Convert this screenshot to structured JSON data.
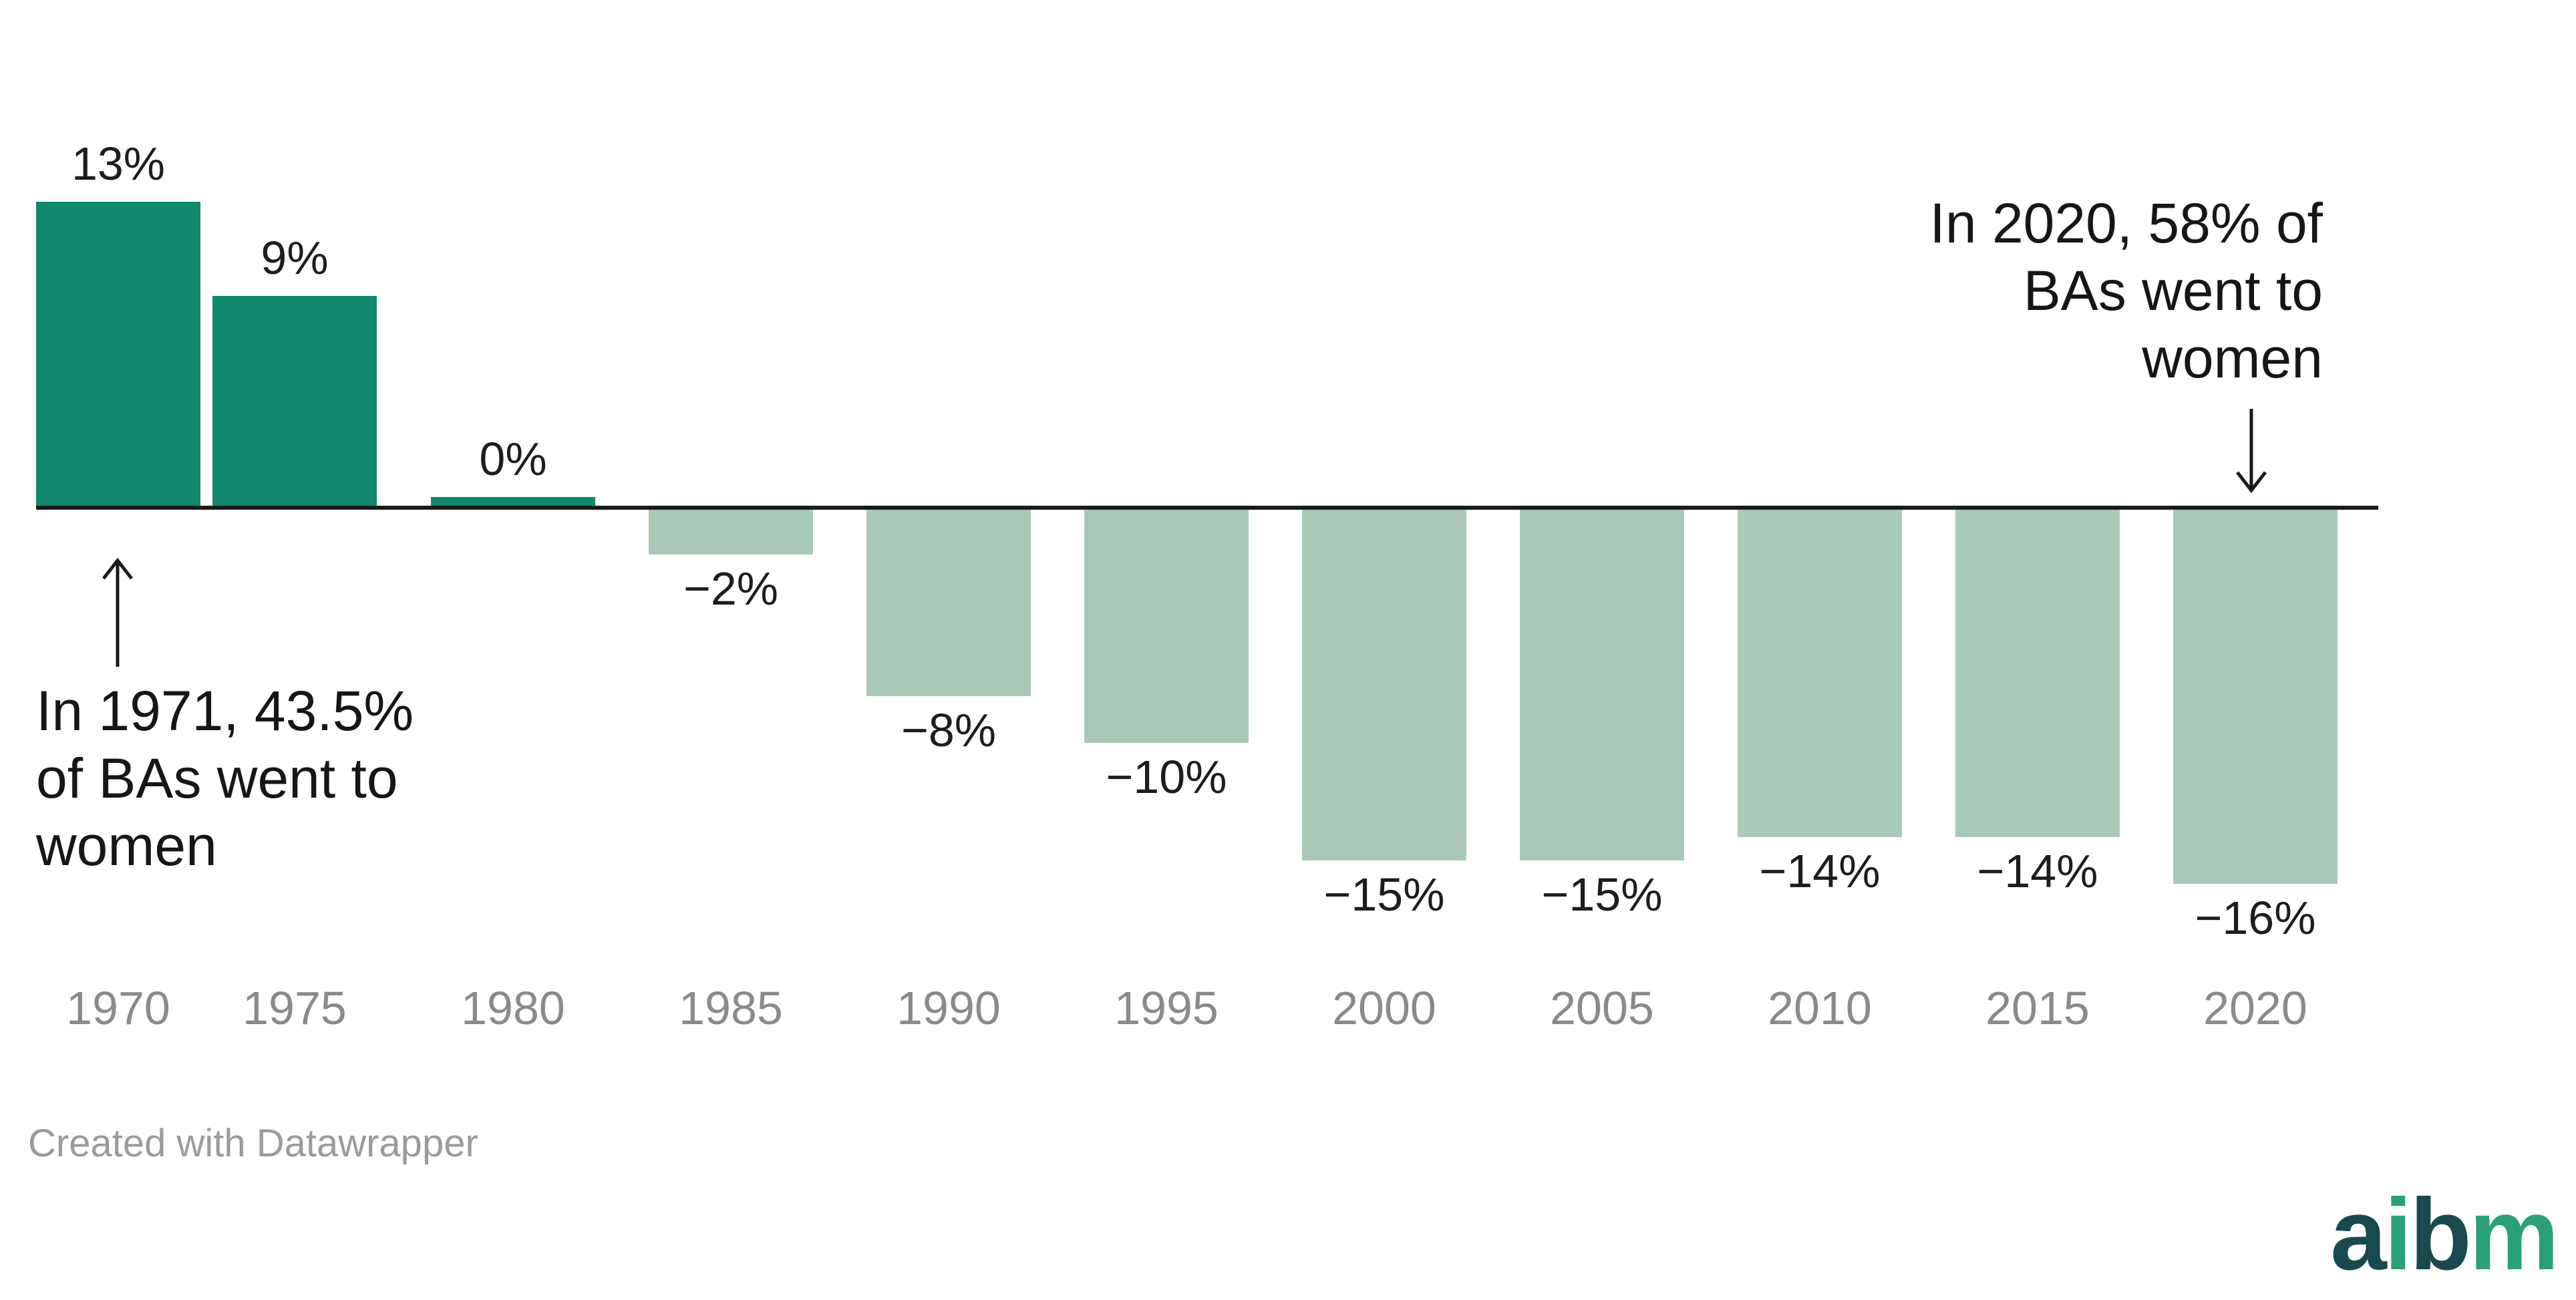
{
  "chart_data": {
    "type": "bar",
    "categories": [
      "1970",
      "1975",
      "1980",
      "1985",
      "1990",
      "1995",
      "2000",
      "2005",
      "2010",
      "2015",
      "2020"
    ],
    "values": [
      13,
      9,
      0,
      -2,
      -8,
      -10,
      -15,
      -15,
      -14,
      -14,
      -16
    ],
    "value_labels": [
      "13%",
      "9%",
      "0%",
      "−2%",
      "−8%",
      "−10%",
      "−15%",
      "−15%",
      "−14%",
      "−14%",
      "−16%"
    ],
    "xlabel": "",
    "ylabel": "",
    "ylim": [
      -16,
      13
    ],
    "baseline_value": 0,
    "gridlines": false,
    "legend": "none",
    "value_label_position": "outside-end",
    "colors": {
      "positive_bar": "#0f8a6c",
      "negative_bar": "#a9c9b8"
    },
    "annotations": [
      {
        "position": "left",
        "arrow": "up",
        "lines": [
          "In 1971, 43.5%",
          "of BAs went to",
          "women"
        ]
      },
      {
        "position": "right",
        "arrow": "down",
        "lines": [
          "In 2020, 58% of",
          "BAs went to",
          "women"
        ]
      }
    ]
  },
  "footer": {
    "credit": "Created with Datawrapper"
  },
  "logo": {
    "text": "aibm",
    "letters": [
      {
        "char": "a",
        "color": "#17494f"
      },
      {
        "char": "i",
        "color": "#2aa079"
      },
      {
        "char": "b",
        "color": "#17494f"
      },
      {
        "char": "m",
        "color": "#2aa079"
      }
    ]
  },
  "styles": {
    "axis_line": "#1a1a1a",
    "value_label": "#1d1d1d",
    "tick_label": "#8a8a8a",
    "annotation_text": "#161616",
    "credit": "#9b9b9b",
    "arrow": "#1a1a1a"
  }
}
